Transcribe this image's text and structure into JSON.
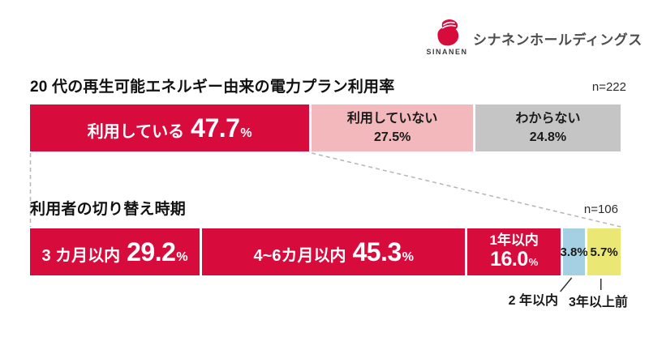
{
  "logo": {
    "brand": "SINANEN",
    "company": "シナネンホールディングス",
    "brand_red": "#d70b3c",
    "text_color": "#4d4d4d"
  },
  "colors": {
    "red": "#d70b3c",
    "pink": "#f2b8bc",
    "gray": "#c5c5c5",
    "blue": "#a5cfe3",
    "yellow": "#ebe775",
    "dark_text": "#1a1a1a",
    "white_text": "#ffffff",
    "dashed_line": "#b5b5b5",
    "callout_line": "#333333"
  },
  "chart_data": [
    {
      "type": "bar",
      "variant": "horizontal-stacked",
      "title": "20 代の再生可能エネルギー由来の電力プラン利用率",
      "sample": "n=222",
      "unit": "%",
      "xlim": [
        0,
        100
      ],
      "segments": [
        {
          "label": "利用している",
          "value": 47.7,
          "display": "47.7",
          "suffix": "%",
          "color": "#d70b3c",
          "text_color": "#ffffff",
          "layout": "inline"
        },
        {
          "label": "利用していない",
          "value": 27.5,
          "display": "27.5%",
          "color": "#f2b8bc",
          "text_color": "#1a1a1a",
          "layout": "stacked"
        },
        {
          "label": "わからない",
          "value": 24.8,
          "display": "24.8%",
          "color": "#c5c5c5",
          "text_color": "#1a1a1a",
          "layout": "stacked"
        }
      ]
    },
    {
      "type": "bar",
      "variant": "horizontal-stacked",
      "title": "利用者の切り替え時期",
      "sample": "n=106",
      "unit": "%",
      "xlim": [
        0,
        100
      ],
      "segments": [
        {
          "label": "3 カ月以内",
          "value": 29.2,
          "display": "29.2",
          "suffix": "%",
          "color": "#d70b3c",
          "text_color": "#ffffff",
          "layout": "inline"
        },
        {
          "label": "4~6カ月以内",
          "value": 45.3,
          "display": "45.3",
          "suffix": "%",
          "color": "#d70b3c",
          "text_color": "#ffffff",
          "layout": "inline"
        },
        {
          "label": "1年以内",
          "value": 16.0,
          "display": "16.0",
          "suffix": "%",
          "color": "#d70b3c",
          "text_color": "#ffffff",
          "layout": "stacked-big"
        },
        {
          "label": "2 年以内",
          "value": 3.8,
          "display": "3.8%",
          "color": "#a5cfe3",
          "text_color": "#1a1a1a",
          "layout": "num-only",
          "callout": "2 年以内"
        },
        {
          "label": "3年以上前",
          "value": 5.7,
          "display": "5.7%",
          "color": "#ebe775",
          "text_color": "#1a1a1a",
          "layout": "num-only",
          "callout": "3年以上前"
        }
      ]
    }
  ]
}
